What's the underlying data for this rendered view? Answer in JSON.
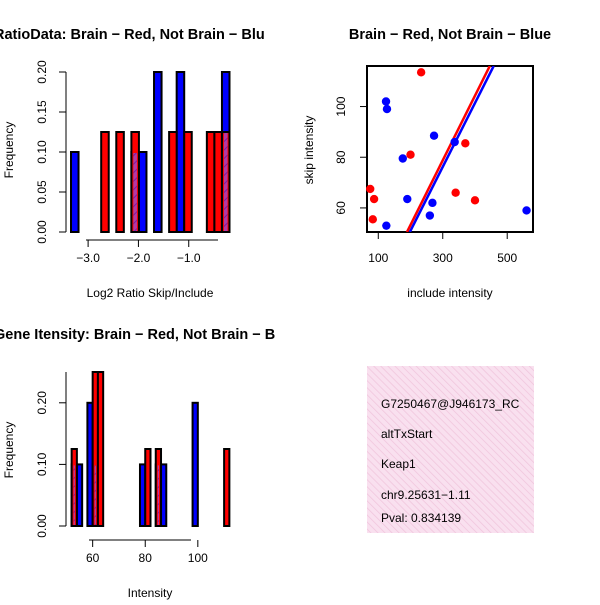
{
  "chart_data": [
    {
      "type": "bar",
      "title": "RatioData: Brain − Red, Not Brain − Blu",
      "xlabel": "Log2 Ratio Skip/Include",
      "ylabel": "Frequency",
      "xlim": [
        -3.34,
        -0.18
      ],
      "ylim": [
        0,
        0.2
      ],
      "xticks": [
        -3.0,
        -2.0,
        -1.0
      ],
      "xtick_labels": [
        "−3.0",
        "−2.0",
        "−1.0"
      ],
      "yticks": [
        0,
        0.05,
        0.1,
        0.15,
        0.2
      ],
      "ytick_labels": [
        "0.00",
        "0.05",
        "0.10",
        "0.15",
        "0.20"
      ],
      "bin_width": 0.15,
      "series": [
        {
          "name": "Not Brain",
          "color": "#0000ff",
          "bins": [
            {
              "x0": -3.34,
              "value": 0.1
            },
            {
              "x0": -2.14,
              "value": 0.1
            },
            {
              "x0": -1.99,
              "value": 0.1
            },
            {
              "x0": -1.69,
              "value": 0.2
            },
            {
              "x0": -1.24,
              "value": 0.2
            },
            {
              "x0": -0.34,
              "value": 0.2
            }
          ]
        },
        {
          "name": "Brain",
          "color": "#ff0000",
          "bins": [
            {
              "x0": -2.74,
              "value": 0.125
            },
            {
              "x0": -2.44,
              "value": 0.125
            },
            {
              "x0": -2.14,
              "value": 0.125
            },
            {
              "x0": -1.39,
              "value": 0.125
            },
            {
              "x0": -1.09,
              "value": 0.125
            },
            {
              "x0": -0.64,
              "value": 0.125
            },
            {
              "x0": -0.49,
              "value": 0.125
            },
            {
              "x0": -0.34,
              "value": 0.125
            }
          ]
        }
      ]
    },
    {
      "type": "scatter",
      "title": "Brain − Red, Not Brain − Blue",
      "xlabel": "include intensity",
      "ylabel": "skip intensity",
      "xlim": [
        65,
        580
      ],
      "ylim": [
        50.5,
        116
      ],
      "xticks": [
        100,
        300,
        500
      ],
      "xtick_labels": [
        "100",
        "300",
        "500"
      ],
      "yticks": [
        60,
        80,
        100
      ],
      "ytick_labels": [
        "60",
        "80",
        "100"
      ],
      "series": [
        {
          "name": "Not Brain",
          "color": "#0000ff",
          "points": [
            [
              124,
              102
            ],
            [
              127,
              99
            ],
            [
              125,
              53
            ],
            [
              176,
              79.5
            ],
            [
              190,
              63.5
            ],
            [
              260,
              57
            ],
            [
              268,
              62
            ],
            [
              273,
              88.5
            ],
            [
              337,
              86
            ],
            [
              560,
              59
            ]
          ]
        },
        {
          "name": "Brain",
          "color": "#ff0000",
          "points": [
            [
              75,
              67.5
            ],
            [
              87,
              63.5
            ],
            [
              83,
              55.5
            ],
            [
              200,
              81
            ],
            [
              233,
              113.5
            ],
            [
              340,
              66
            ],
            [
              370,
              85.5
            ],
            [
              400,
              63
            ]
          ]
        }
      ],
      "fit_lines": [
        {
          "name": "Not Brain fit",
          "color": "#0000ff",
          "p1": [
            198,
            50.5
          ],
          "p2": [
            458,
            116
          ]
        },
        {
          "name": "Brain fit",
          "color": "#ff0000",
          "p1": [
            189,
            50.5
          ],
          "p2": [
            446,
            116
          ]
        }
      ]
    },
    {
      "type": "bar",
      "title": "Gene Itensity: Brain − Red, Not Brain − B",
      "xlabel": "Intensity",
      "ylabel": "Frequency",
      "xlim": [
        51,
        113
      ],
      "ylim": [
        0,
        0.25
      ],
      "xticks": [
        60,
        80,
        100
      ],
      "xtick_labels": [
        "60",
        "80",
        "100"
      ],
      "yticks": [
        0,
        0.1,
        0.2
      ],
      "ytick_labels": [
        "0.00",
        "0.10",
        "0.20"
      ],
      "bin_width": 2,
      "series": [
        {
          "name": "Not Brain",
          "color": "#0000ff",
          "bins": [
            {
              "x0": 52,
              "value": 0.1
            },
            {
              "x0": 54,
              "value": 0.1
            },
            {
              "x0": 58,
              "value": 0.2
            },
            {
              "x0": 60,
              "value": 0.1
            },
            {
              "x0": 78,
              "value": 0.1
            },
            {
              "x0": 84,
              "value": 0.1
            },
            {
              "x0": 86,
              "value": 0.1
            },
            {
              "x0": 98,
              "value": 0.2
            }
          ]
        },
        {
          "name": "Brain",
          "color": "#ff0000",
          "bins": [
            {
              "x0": 52,
              "value": 0.125
            },
            {
              "x0": 60,
              "value": 0.25
            },
            {
              "x0": 62,
              "value": 0.25
            },
            {
              "x0": 80,
              "value": 0.125
            },
            {
              "x0": 84,
              "value": 0.125
            },
            {
              "x0": 110,
              "value": 0.125
            }
          ]
        }
      ]
    }
  ],
  "info_box": {
    "event_id": "G7250467@J946173_RC",
    "event_type": "altTxStart",
    "gene": "Keap1",
    "location": "chr9.25631−1.11",
    "pval": "Pval: 0.834139",
    "pval_color": "#8b0000"
  }
}
